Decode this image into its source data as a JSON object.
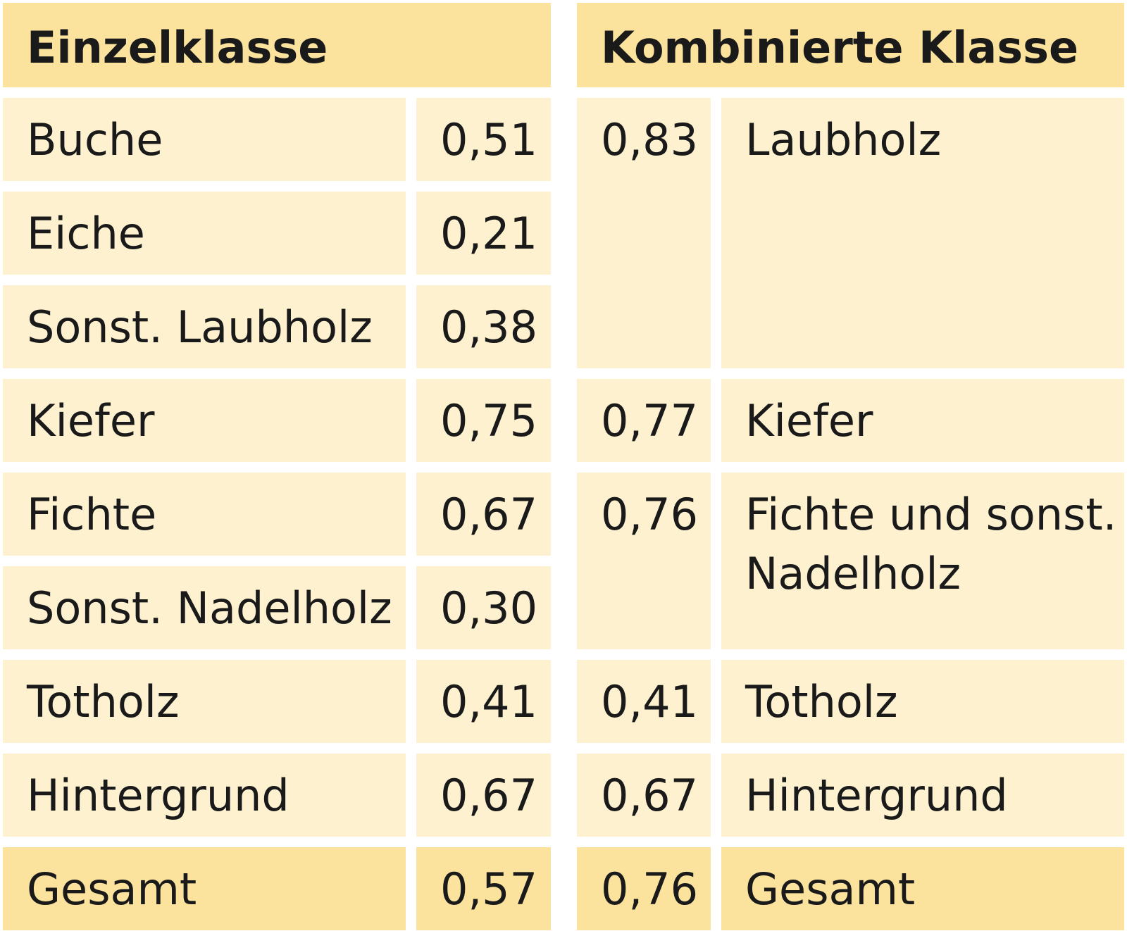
{
  "headers": {
    "single": "Einzelklasse",
    "combined": "Kombinierte Klasse"
  },
  "single": [
    {
      "label": "Buche",
      "value": "0,51"
    },
    {
      "label": "Eiche",
      "value": "0,21"
    },
    {
      "label": "Sonst. Laubholz",
      "value": "0,38"
    },
    {
      "label": "Kiefer",
      "value": "0,75"
    },
    {
      "label": "Fichte",
      "value": "0,67"
    },
    {
      "label": "Sonst. Nadelholz",
      "value": "0,30"
    },
    {
      "label": "Totholz",
      "value": "0,41"
    },
    {
      "label": "Hintergrund",
      "value": "0,67"
    },
    {
      "label": "Gesamt",
      "value": "0,57"
    }
  ],
  "combined": [
    {
      "value": "0,83",
      "label": "Laubholz"
    },
    {
      "value": "0,77",
      "label": "Kiefer"
    },
    {
      "value": "0,76",
      "label": "Fichte und sonst. Nadelholz"
    },
    {
      "value": "0,41",
      "label": "Totholz"
    },
    {
      "value": "0,67",
      "label": "Hintergrund"
    },
    {
      "value": "0,76",
      "label": "Gesamt"
    }
  ],
  "colors": {
    "header": "#fbe29d",
    "cell": "#fdf1d0",
    "total": "#fbe29d"
  }
}
